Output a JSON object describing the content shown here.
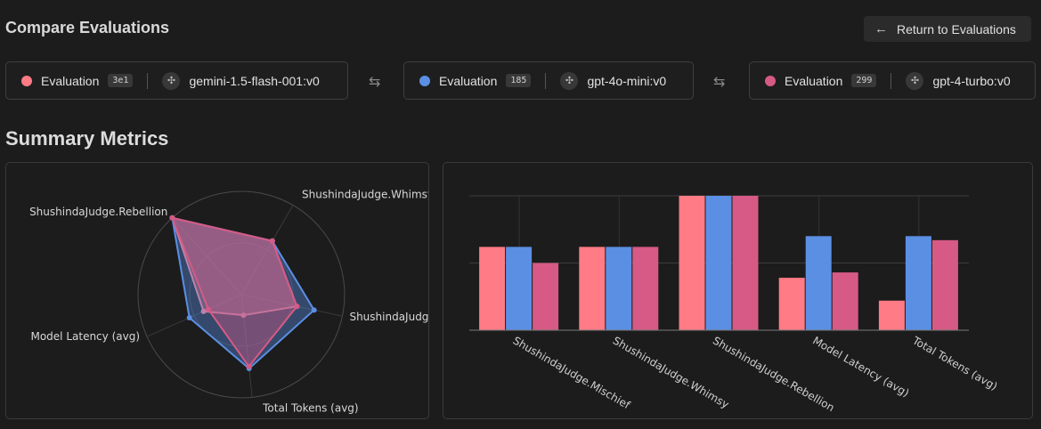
{
  "header": {
    "title": "Compare Evaluations",
    "return_label": "Return to Evaluations"
  },
  "evaluations": [
    {
      "label": "Evaluation",
      "badge": "3e1",
      "model": "gemini-1.5-flash-001:v0",
      "color": "#ff7b85"
    },
    {
      "label": "Evaluation",
      "badge": "185",
      "model": "gpt-4o-mini:v0",
      "color": "#5b8fe3"
    },
    {
      "label": "Evaluation",
      "badge": "299",
      "model": "gpt-4-turbo:v0",
      "color": "#d65a85"
    }
  ],
  "summary": {
    "title": "Summary Metrics"
  },
  "chart_data": [
    {
      "type": "radar",
      "axes": [
        "ShushindaJudge.Whimsy",
        "ShushindaJudge.Mischief",
        "Total Tokens (avg)",
        "Model Latency (avg)",
        "ShushindaJudge.Rebellion"
      ],
      "axis_labels": [
        "ShushindaJudge.Whimsy",
        "ShushindaJudge",
        "Total Tokens (avg)",
        "Model Latency (avg)",
        "ShushindaJudge.Rebellion"
      ],
      "rmax": 1,
      "series": [
        {
          "name": "gemini-1.5-flash-001:v0",
          "color": "#ff7b85",
          "values": [
            0.6,
            0.55,
            0.2,
            0.4,
            1.0
          ]
        },
        {
          "name": "gpt-4o-mini:v0",
          "color": "#5b8fe3",
          "values": [
            0.6,
            0.72,
            0.72,
            0.55,
            1.0
          ]
        },
        {
          "name": "gpt-4-turbo:v0",
          "color": "#d65a85",
          "values": [
            0.6,
            0.55,
            0.7,
            0.35,
            1.0
          ]
        }
      ]
    },
    {
      "type": "bar",
      "categories": [
        "ShushindaJudge.Mischief",
        "ShushindaJudge.Whimsy",
        "ShushindaJudge.Rebellion",
        "Model Latency (avg)",
        "Total Tokens (avg)"
      ],
      "ylim": [
        0,
        1
      ],
      "series": [
        {
          "name": "gemini-1.5-flash-001:v0",
          "color": "#ff7b85",
          "values": [
            0.62,
            0.62,
            1.0,
            0.39,
            0.22
          ]
        },
        {
          "name": "gpt-4o-mini:v0",
          "color": "#5b8fe3",
          "values": [
            0.62,
            0.62,
            1.0,
            0.7,
            0.7
          ]
        },
        {
          "name": "gpt-4-turbo:v0",
          "color": "#d65a85",
          "values": [
            0.5,
            0.62,
            1.0,
            0.43,
            0.67
          ]
        }
      ]
    }
  ]
}
